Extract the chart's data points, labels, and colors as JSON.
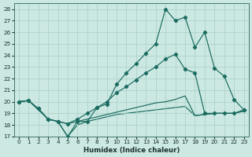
{
  "background_color": "#cce8e2",
  "grid_color": "#a8cfc8",
  "line_color": "#1a6b60",
  "xlabel": "Humidex (Indice chaleur)",
  "xlim": [
    -0.5,
    23.5
  ],
  "ylim": [
    17,
    28.5
  ],
  "yticks": [
    17,
    18,
    19,
    20,
    21,
    22,
    23,
    24,
    25,
    26,
    27,
    28
  ],
  "xticks": [
    0,
    1,
    2,
    3,
    4,
    5,
    6,
    7,
    8,
    9,
    10,
    11,
    12,
    13,
    14,
    15,
    16,
    17,
    18,
    19,
    20,
    21,
    22,
    23
  ],
  "curve_jagged_x": [
    0,
    1,
    2,
    3,
    4,
    5,
    6,
    7,
    8,
    9,
    10,
    11,
    12,
    13,
    14,
    15,
    16,
    17,
    18,
    19,
    20,
    21,
    22,
    23
  ],
  "curve_jagged_y": [
    20.0,
    20.1,
    19.4,
    18.5,
    18.3,
    17.0,
    18.3,
    18.3,
    19.5,
    19.8,
    21.5,
    22.5,
    23.3,
    24.2,
    25.0,
    28.0,
    27.0,
    27.3,
    24.7,
    26.0,
    22.9,
    22.2,
    20.2,
    19.3
  ],
  "curve_rising_x": [
    0,
    1,
    2,
    3,
    4,
    5,
    6,
    7,
    8,
    9,
    10,
    11,
    12,
    13,
    14,
    15,
    16,
    17,
    18,
    19,
    20,
    21,
    22,
    23
  ],
  "curve_rising_y": [
    20.0,
    20.1,
    19.4,
    18.5,
    18.3,
    18.1,
    18.5,
    19.0,
    19.5,
    20.0,
    20.8,
    21.3,
    21.9,
    22.5,
    23.0,
    23.7,
    24.1,
    22.8,
    22.5,
    19.0,
    19.0,
    19.0,
    19.0,
    19.3
  ],
  "curve_straight_x": [
    0,
    1,
    2,
    3,
    4,
    5,
    6,
    7,
    8,
    9,
    10,
    11,
    12,
    13,
    14,
    15,
    16,
    17,
    18,
    19,
    20,
    21,
    22,
    23
  ],
  "curve_straight_y": [
    20.0,
    20.1,
    19.3,
    18.5,
    18.3,
    18.1,
    18.3,
    18.5,
    18.7,
    18.9,
    19.1,
    19.3,
    19.5,
    19.7,
    19.9,
    20.0,
    20.2,
    20.5,
    18.8,
    18.9,
    19.0,
    19.0,
    19.0,
    19.2
  ],
  "curve_bottom_x": [
    0,
    1,
    2,
    3,
    4,
    5,
    6,
    7,
    8,
    9,
    10,
    11,
    12,
    13,
    14,
    15,
    16,
    17,
    18,
    19,
    20,
    21,
    22,
    23
  ],
  "curve_bottom_y": [
    20.0,
    20.1,
    19.4,
    18.5,
    18.3,
    17.0,
    18.0,
    18.3,
    18.5,
    18.7,
    18.9,
    19.0,
    19.1,
    19.2,
    19.3,
    19.4,
    19.5,
    19.6,
    18.8,
    18.9,
    19.0,
    19.0,
    19.0,
    19.2
  ]
}
